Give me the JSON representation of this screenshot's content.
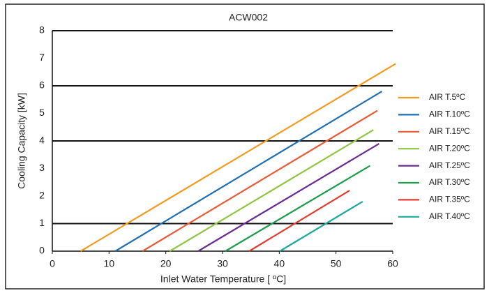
{
  "chart_data": {
    "type": "line",
    "title": "ACW002",
    "x_label": "Inlet Water Temperature [ ºC]",
    "y_label": "Cooling Capacity [kW]",
    "xlim": [
      0,
      60
    ],
    "xticks": [
      0,
      10,
      20,
      30,
      40,
      50,
      60
    ],
    "ylim": [
      0,
      8
    ],
    "yticks": [
      0,
      1,
      2,
      3,
      4,
      5,
      6,
      7,
      8
    ],
    "grid_lines": [
      1,
      4,
      6,
      8
    ],
    "series": [
      {
        "name": "AIR T.5ºC",
        "color": "#f39a1e",
        "x": [
          5,
          60.5
        ],
        "values": [
          0,
          6.8
        ]
      },
      {
        "name": "AIR T.10ºC",
        "color": "#1f6fb2",
        "x": [
          11.1,
          58.1
        ],
        "values": [
          0,
          5.8
        ]
      },
      {
        "name": "AIR T.15ºC",
        "color": "#ea5a36",
        "x": [
          15.9,
          57.3
        ],
        "values": [
          0,
          5.1
        ]
      },
      {
        "name": "AIR T.20ºC",
        "color": "#8dc63f",
        "x": [
          20.7,
          56.6
        ],
        "values": [
          0,
          4.4
        ]
      },
      {
        "name": "AIR T.25ºC",
        "color": "#6a2c91",
        "x": [
          25.7,
          57.6
        ],
        "values": [
          0,
          3.9
        ]
      },
      {
        "name": "AIR T.30ºC",
        "color": "#1a9e4a",
        "x": [
          30.5,
          56
        ],
        "values": [
          0,
          3.1
        ]
      },
      {
        "name": "AIR T.35ºC",
        "color": "#e23b2e",
        "x": [
          34.7,
          52.4
        ],
        "values": [
          0,
          2.2
        ]
      },
      {
        "name": "AIR T.40ºC",
        "color": "#1ba99c",
        "x": [
          40.1,
          54.7
        ],
        "values": [
          0,
          1.8
        ]
      }
    ]
  }
}
